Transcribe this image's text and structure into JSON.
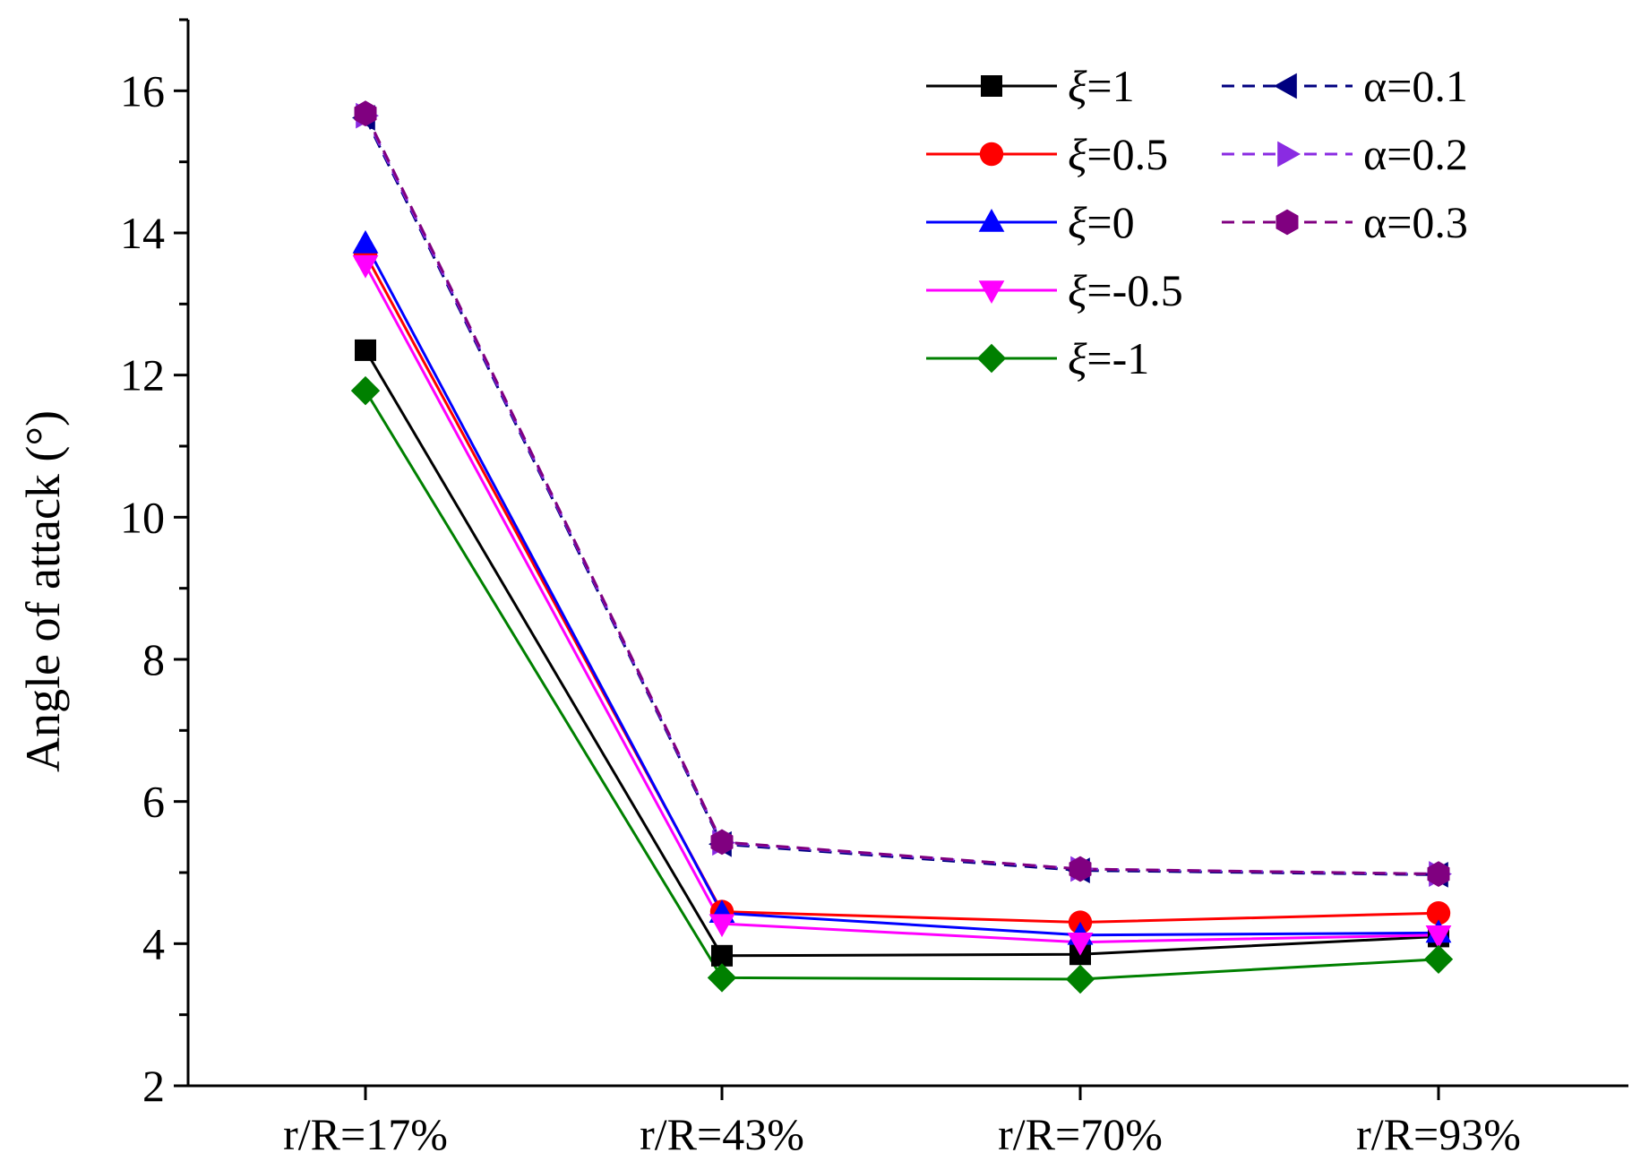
{
  "chart_data": {
    "type": "line",
    "title": "",
    "xlabel": "",
    "ylabel": "Angle of attack (°)",
    "categories": [
      "r/R=17%",
      "r/R=43%",
      "r/R=70%",
      "r/R=93%"
    ],
    "ylim": [
      2,
      17
    ],
    "yticks": [
      2,
      4,
      6,
      8,
      10,
      12,
      14,
      16
    ],
    "ytick_labels": [
      "2",
      "4",
      "6",
      "8",
      "10",
      "12",
      "14",
      "16"
    ],
    "grid": false,
    "legend_position": "top-right",
    "series": [
      {
        "name": "ξ=1",
        "sym": "ξ",
        "rest": "=1",
        "color": "#000000",
        "marker": "square",
        "dash": false,
        "values": [
          12.35,
          3.83,
          3.85,
          4.1
        ]
      },
      {
        "name": "ξ=0.5",
        "sym": "ξ",
        "rest": "=0.5",
        "color": "#ff0000",
        "marker": "circle",
        "dash": false,
        "values": [
          13.7,
          4.45,
          4.3,
          4.43
        ]
      },
      {
        "name": "ξ=0",
        "sym": "ξ",
        "rest": "=0",
        "color": "#0000ff",
        "marker": "triangle-up",
        "dash": false,
        "values": [
          13.85,
          4.43,
          4.12,
          4.15
        ]
      },
      {
        "name": "ξ=-0.5",
        "sym": "ξ",
        "rest": "=-0.5",
        "color": "#ff00ff",
        "marker": "triangle-down",
        "dash": false,
        "values": [
          13.55,
          4.28,
          4.02,
          4.12
        ]
      },
      {
        "name": "ξ=-1",
        "sym": "ξ",
        "rest": "=-1",
        "color": "#008000",
        "marker": "diamond",
        "dash": false,
        "values": [
          11.78,
          3.52,
          3.5,
          3.78
        ]
      },
      {
        "name": "α=0.1",
        "sym": "α",
        "rest": "=0.1",
        "color": "#000080",
        "marker": "triangle-left",
        "dash": true,
        "values": [
          15.62,
          5.4,
          5.03,
          4.97
        ]
      },
      {
        "name": "α=0.2",
        "sym": "α",
        "rest": "=0.2",
        "color": "#8a2be2",
        "marker": "triangle-right",
        "dash": true,
        "values": [
          15.65,
          5.42,
          5.05,
          4.98
        ]
      },
      {
        "name": "α=0.3",
        "sym": "α",
        "rest": "=0.3",
        "color": "#800080",
        "marker": "hexagon",
        "dash": true,
        "values": [
          15.68,
          5.43,
          5.05,
          4.98
        ]
      }
    ]
  }
}
